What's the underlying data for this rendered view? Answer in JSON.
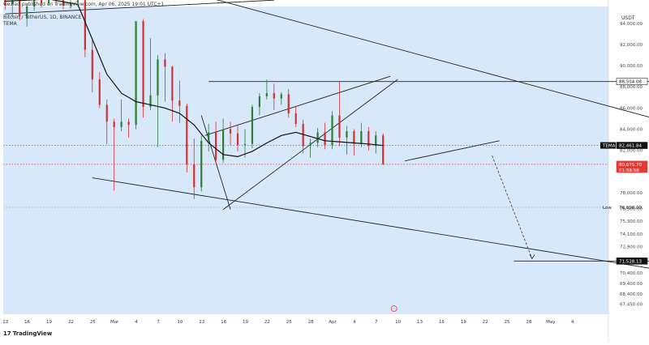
{
  "header": {
    "publish_line": "wezlad published on TradingView.com, Apr 06, 2025 19:01 UTC+1",
    "symbol_line": "Bitcoin / TetherUS, 1D, BINANCE",
    "indicator": "TEMA"
  },
  "footer": {
    "brand": "TradingView"
  },
  "colors": {
    "background": "#d7e8fb",
    "up_candle": "#2e7d32",
    "down_candle": "#d32f2f",
    "tema_line": "#111111",
    "price_line": "#e53935",
    "trend_line": "#222222"
  },
  "chart_data": {
    "type": "candlestick",
    "title": "Bitcoin / TetherUS, 1D, BINANCE",
    "currency": "USDT",
    "ylim": [
      66500,
      95600
    ],
    "x_ticks": [
      "13",
      "16",
      "19",
      "22",
      "25",
      "Mar",
      "4",
      "7",
      "10",
      "13",
      "16",
      "19",
      "22",
      "25",
      "28",
      "Apr",
      "4",
      "7",
      "10",
      "13",
      "16",
      "19",
      "22",
      "25",
      "28",
      "May",
      "4"
    ],
    "y_ticks": [
      "94,000.00",
      "92,000.00",
      "90,000.00",
      "88,000.00",
      "86,000.00",
      "84,000.00",
      "82,000.00",
      "80,000.00",
      "78,000.00",
      "76,500.00",
      "75,300.00",
      "74,100.00",
      "72,900.00",
      "71,700.00",
      "70,400.00",
      "69,400.00",
      "68,400.00",
      "67,450.00"
    ],
    "price_labels": [
      {
        "label": "",
        "value": "88,504.08",
        "y": 88504,
        "style": "outline"
      },
      {
        "label": "TEMA",
        "value": "82,461.84",
        "y": 82462,
        "style": "dark"
      },
      {
        "label": "",
        "value": "80,675.70\n01:58:58",
        "y": 80676,
        "style": "red"
      },
      {
        "label": "Low",
        "value": "76,606.00",
        "y": 76606,
        "style": "plain"
      },
      {
        "label": "",
        "value": "71,528.13",
        "y": 71528,
        "style": "dark"
      }
    ],
    "candles": [
      {
        "o": 96500,
        "h": 97200,
        "l": 95300,
        "c": 95800
      },
      {
        "o": 95800,
        "h": 96700,
        "l": 94600,
        "c": 96200
      },
      {
        "o": 96200,
        "h": 96400,
        "l": 94300,
        "c": 94700
      },
      {
        "o": 94700,
        "h": 95900,
        "l": 93700,
        "c": 95600
      },
      {
        "o": 95600,
        "h": 96700,
        "l": 95200,
        "c": 96400
      },
      {
        "o": 96400,
        "h": 96800,
        "l": 95500,
        "c": 95900
      },
      {
        "o": 95900,
        "h": 97400,
        "l": 95700,
        "c": 96500
      },
      {
        "o": 96500,
        "h": 97000,
        "l": 95700,
        "c": 96200
      },
      {
        "o": 96200,
        "h": 96600,
        "l": 95300,
        "c": 95700
      },
      {
        "o": 95700,
        "h": 96200,
        "l": 95400,
        "c": 96000
      },
      {
        "o": 96000,
        "h": 97000,
        "l": 95600,
        "c": 96200
      },
      {
        "o": 96200,
        "h": 96400,
        "l": 90800,
        "c": 91500
      },
      {
        "o": 91500,
        "h": 92600,
        "l": 87500,
        "c": 88700
      },
      {
        "o": 88700,
        "h": 89400,
        "l": 86000,
        "c": 86300
      },
      {
        "o": 86300,
        "h": 86800,
        "l": 82600,
        "c": 84700
      },
      {
        "o": 84700,
        "h": 85000,
        "l": 78200,
        "c": 84200
      },
      {
        "o": 84200,
        "h": 86800,
        "l": 83800,
        "c": 84700
      },
      {
        "o": 84700,
        "h": 85000,
        "l": 83200,
        "c": 84400
      },
      {
        "o": 84400,
        "h": 94200,
        "l": 84000,
        "c": 94200
      },
      {
        "o": 94200,
        "h": 94400,
        "l": 85100,
        "c": 86100
      },
      {
        "o": 86100,
        "h": 92600,
        "l": 85800,
        "c": 87200
      },
      {
        "o": 87200,
        "h": 91000,
        "l": 82300,
        "c": 90600
      },
      {
        "o": 90600,
        "h": 91200,
        "l": 86600,
        "c": 89900
      },
      {
        "o": 89900,
        "h": 90000,
        "l": 84700,
        "c": 86700
      },
      {
        "o": 86700,
        "h": 88600,
        "l": 84600,
        "c": 86200
      },
      {
        "o": 86200,
        "h": 86400,
        "l": 79900,
        "c": 80700
      },
      {
        "o": 80700,
        "h": 83100,
        "l": 77400,
        "c": 78500
      },
      {
        "o": 78500,
        "h": 83400,
        "l": 78100,
        "c": 82900
      },
      {
        "o": 82900,
        "h": 84500,
        "l": 81900,
        "c": 83700
      },
      {
        "o": 83700,
        "h": 84700,
        "l": 80800,
        "c": 81100
      },
      {
        "o": 81100,
        "h": 85000,
        "l": 80800,
        "c": 84000
      },
      {
        "o": 84000,
        "h": 84700,
        "l": 82500,
        "c": 83600
      },
      {
        "o": 83600,
        "h": 84300,
        "l": 81900,
        "c": 82500
      },
      {
        "o": 82500,
        "h": 84000,
        "l": 81300,
        "c": 82600
      },
      {
        "o": 82600,
        "h": 86300,
        "l": 82200,
        "c": 86100
      },
      {
        "o": 86100,
        "h": 87400,
        "l": 85300,
        "c": 87100
      },
      {
        "o": 87100,
        "h": 88700,
        "l": 86800,
        "c": 87400
      },
      {
        "o": 87400,
        "h": 88300,
        "l": 85800,
        "c": 86900
      },
      {
        "o": 86900,
        "h": 87500,
        "l": 86300,
        "c": 87300
      },
      {
        "o": 87300,
        "h": 87800,
        "l": 85100,
        "c": 85500
      },
      {
        "o": 85500,
        "h": 86200,
        "l": 84200,
        "c": 84500
      },
      {
        "o": 84500,
        "h": 84900,
        "l": 81700,
        "c": 82400
      },
      {
        "o": 82400,
        "h": 83100,
        "l": 81300,
        "c": 82700
      },
      {
        "o": 82700,
        "h": 84100,
        "l": 82300,
        "c": 83700
      },
      {
        "o": 83700,
        "h": 84600,
        "l": 82100,
        "c": 82500
      },
      {
        "o": 82500,
        "h": 85700,
        "l": 82100,
        "c": 85300
      },
      {
        "o": 85300,
        "h": 88500,
        "l": 82400,
        "c": 83200
      },
      {
        "o": 83200,
        "h": 84300,
        "l": 81600,
        "c": 83800
      },
      {
        "o": 83800,
        "h": 84000,
        "l": 81500,
        "c": 82600
      },
      {
        "o": 82600,
        "h": 84600,
        "l": 82300,
        "c": 83800
      },
      {
        "o": 83800,
        "h": 84200,
        "l": 82000,
        "c": 82400
      },
      {
        "o": 82400,
        "h": 83800,
        "l": 81700,
        "c": 83400
      },
      {
        "o": 83400,
        "h": 83600,
        "l": 80600,
        "c": 80700
      }
    ],
    "tema": [
      {
        "i": 0,
        "v": 96100
      },
      {
        "i": 6,
        "v": 96300
      },
      {
        "i": 10,
        "v": 95800
      },
      {
        "i": 12,
        "v": 92500
      },
      {
        "i": 14,
        "v": 89200
      },
      {
        "i": 16,
        "v": 87400
      },
      {
        "i": 18,
        "v": 86600
      },
      {
        "i": 20,
        "v": 86300
      },
      {
        "i": 22,
        "v": 86000
      },
      {
        "i": 24,
        "v": 85500
      },
      {
        "i": 26,
        "v": 84400
      },
      {
        "i": 28,
        "v": 82700
      },
      {
        "i": 30,
        "v": 81600
      },
      {
        "i": 32,
        "v": 81400
      },
      {
        "i": 34,
        "v": 81900
      },
      {
        "i": 36,
        "v": 82700
      },
      {
        "i": 38,
        "v": 83400
      },
      {
        "i": 40,
        "v": 83700
      },
      {
        "i": 42,
        "v": 83300
      },
      {
        "i": 44,
        "v": 82900
      },
      {
        "i": 46,
        "v": 82800
      },
      {
        "i": 48,
        "v": 82700
      },
      {
        "i": 50,
        "v": 82600
      },
      {
        "i": 52,
        "v": 82450
      }
    ],
    "trend_lines": [
      {
        "x1": 0,
        "y1": 94900,
        "x2": 37,
        "y2": 96200,
        "style": "solid"
      },
      {
        "x1": 25,
        "y1": 97000,
        "x2": 99,
        "y2": 83200,
        "style": "solid"
      },
      {
        "x1": 12,
        "y1": 79400,
        "x2": 99,
        "y2": 69700,
        "style": "solid"
      },
      {
        "x1": 30,
        "y1": 76400,
        "x2": 54,
        "y2": 88700,
        "style": "solid"
      },
      {
        "x1": 27.5,
        "y1": 83400,
        "x2": 53,
        "y2": 89000,
        "style": "solid"
      },
      {
        "x1": 27,
        "y1": 85300,
        "x2": 31,
        "y2": 76400,
        "style": "solid"
      },
      {
        "x1": 55,
        "y1": 81000,
        "x2": 68,
        "y2": 82900,
        "style": "solid"
      },
      {
        "x1": 28,
        "y1": 88504,
        "x2": 102,
        "y2": 88504,
        "style": "solid"
      },
      {
        "x1": 70,
        "y1": 71528,
        "x2": 102,
        "y2": 71528,
        "style": "solid"
      },
      {
        "x1": 67,
        "y1": 81500,
        "x2": 72.5,
        "y2": 71750,
        "style": "dashed-arrow"
      }
    ],
    "hlines": [
      {
        "y": 82462,
        "style": "dotted",
        "color": "#555555"
      },
      {
        "y": 80676,
        "style": "dotted",
        "color": "#e53935"
      },
      {
        "y": 76606,
        "style": "dotted",
        "color": "#9aa8b8"
      }
    ]
  }
}
